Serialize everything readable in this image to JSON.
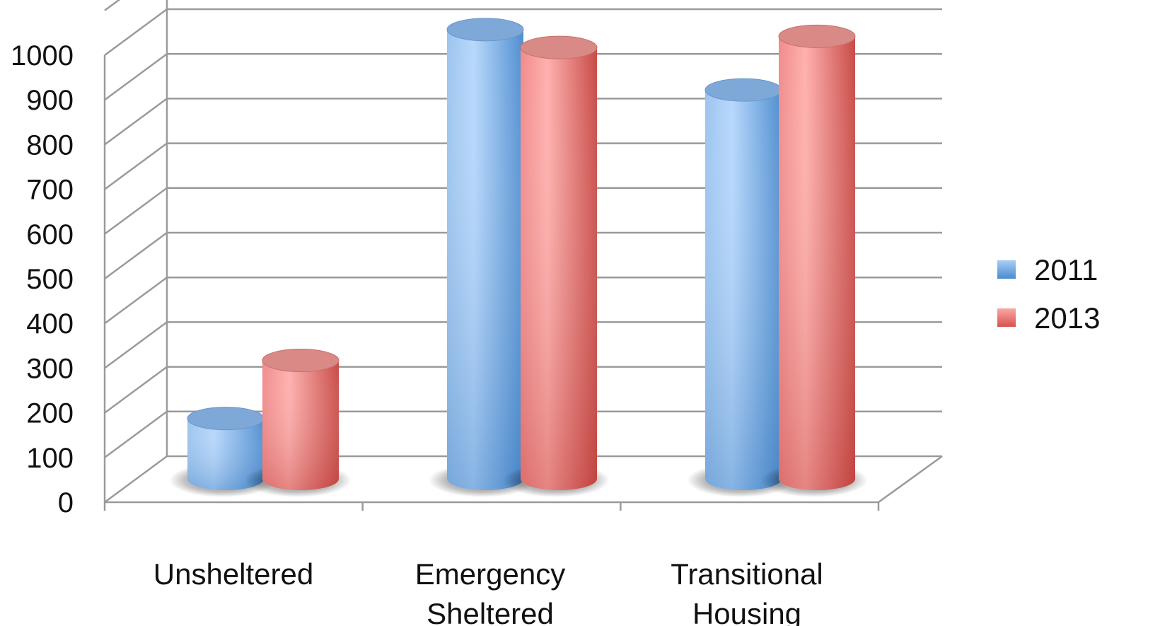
{
  "chart_data": {
    "type": "bar",
    "title": "",
    "xlabel": "",
    "ylabel": "",
    "ylim": [
      0,
      1000
    ],
    "ticks": [
      "0",
      "100",
      "200",
      "300",
      "400",
      "500",
      "600",
      "700",
      "800",
      "900",
      "1000"
    ],
    "categories": [
      "Unsheltered",
      "Emergency Sheltered",
      "Transitional Housing"
    ],
    "category_lines": [
      [
        "Unsheltered"
      ],
      [
        "Emergency",
        "Sheltered"
      ],
      [
        "Transitional",
        "Housing"
      ]
    ],
    "series": [
      {
        "name": "2011",
        "values": [
          135,
          1005,
          870
        ]
      },
      {
        "name": "2013",
        "values": [
          265,
          965,
          990
        ]
      }
    ],
    "colors": {
      "2011": "#5b9bd5",
      "2013": "#e06060"
    },
    "grid": true,
    "legend_position": "right",
    "style": "3d-cylinder"
  }
}
